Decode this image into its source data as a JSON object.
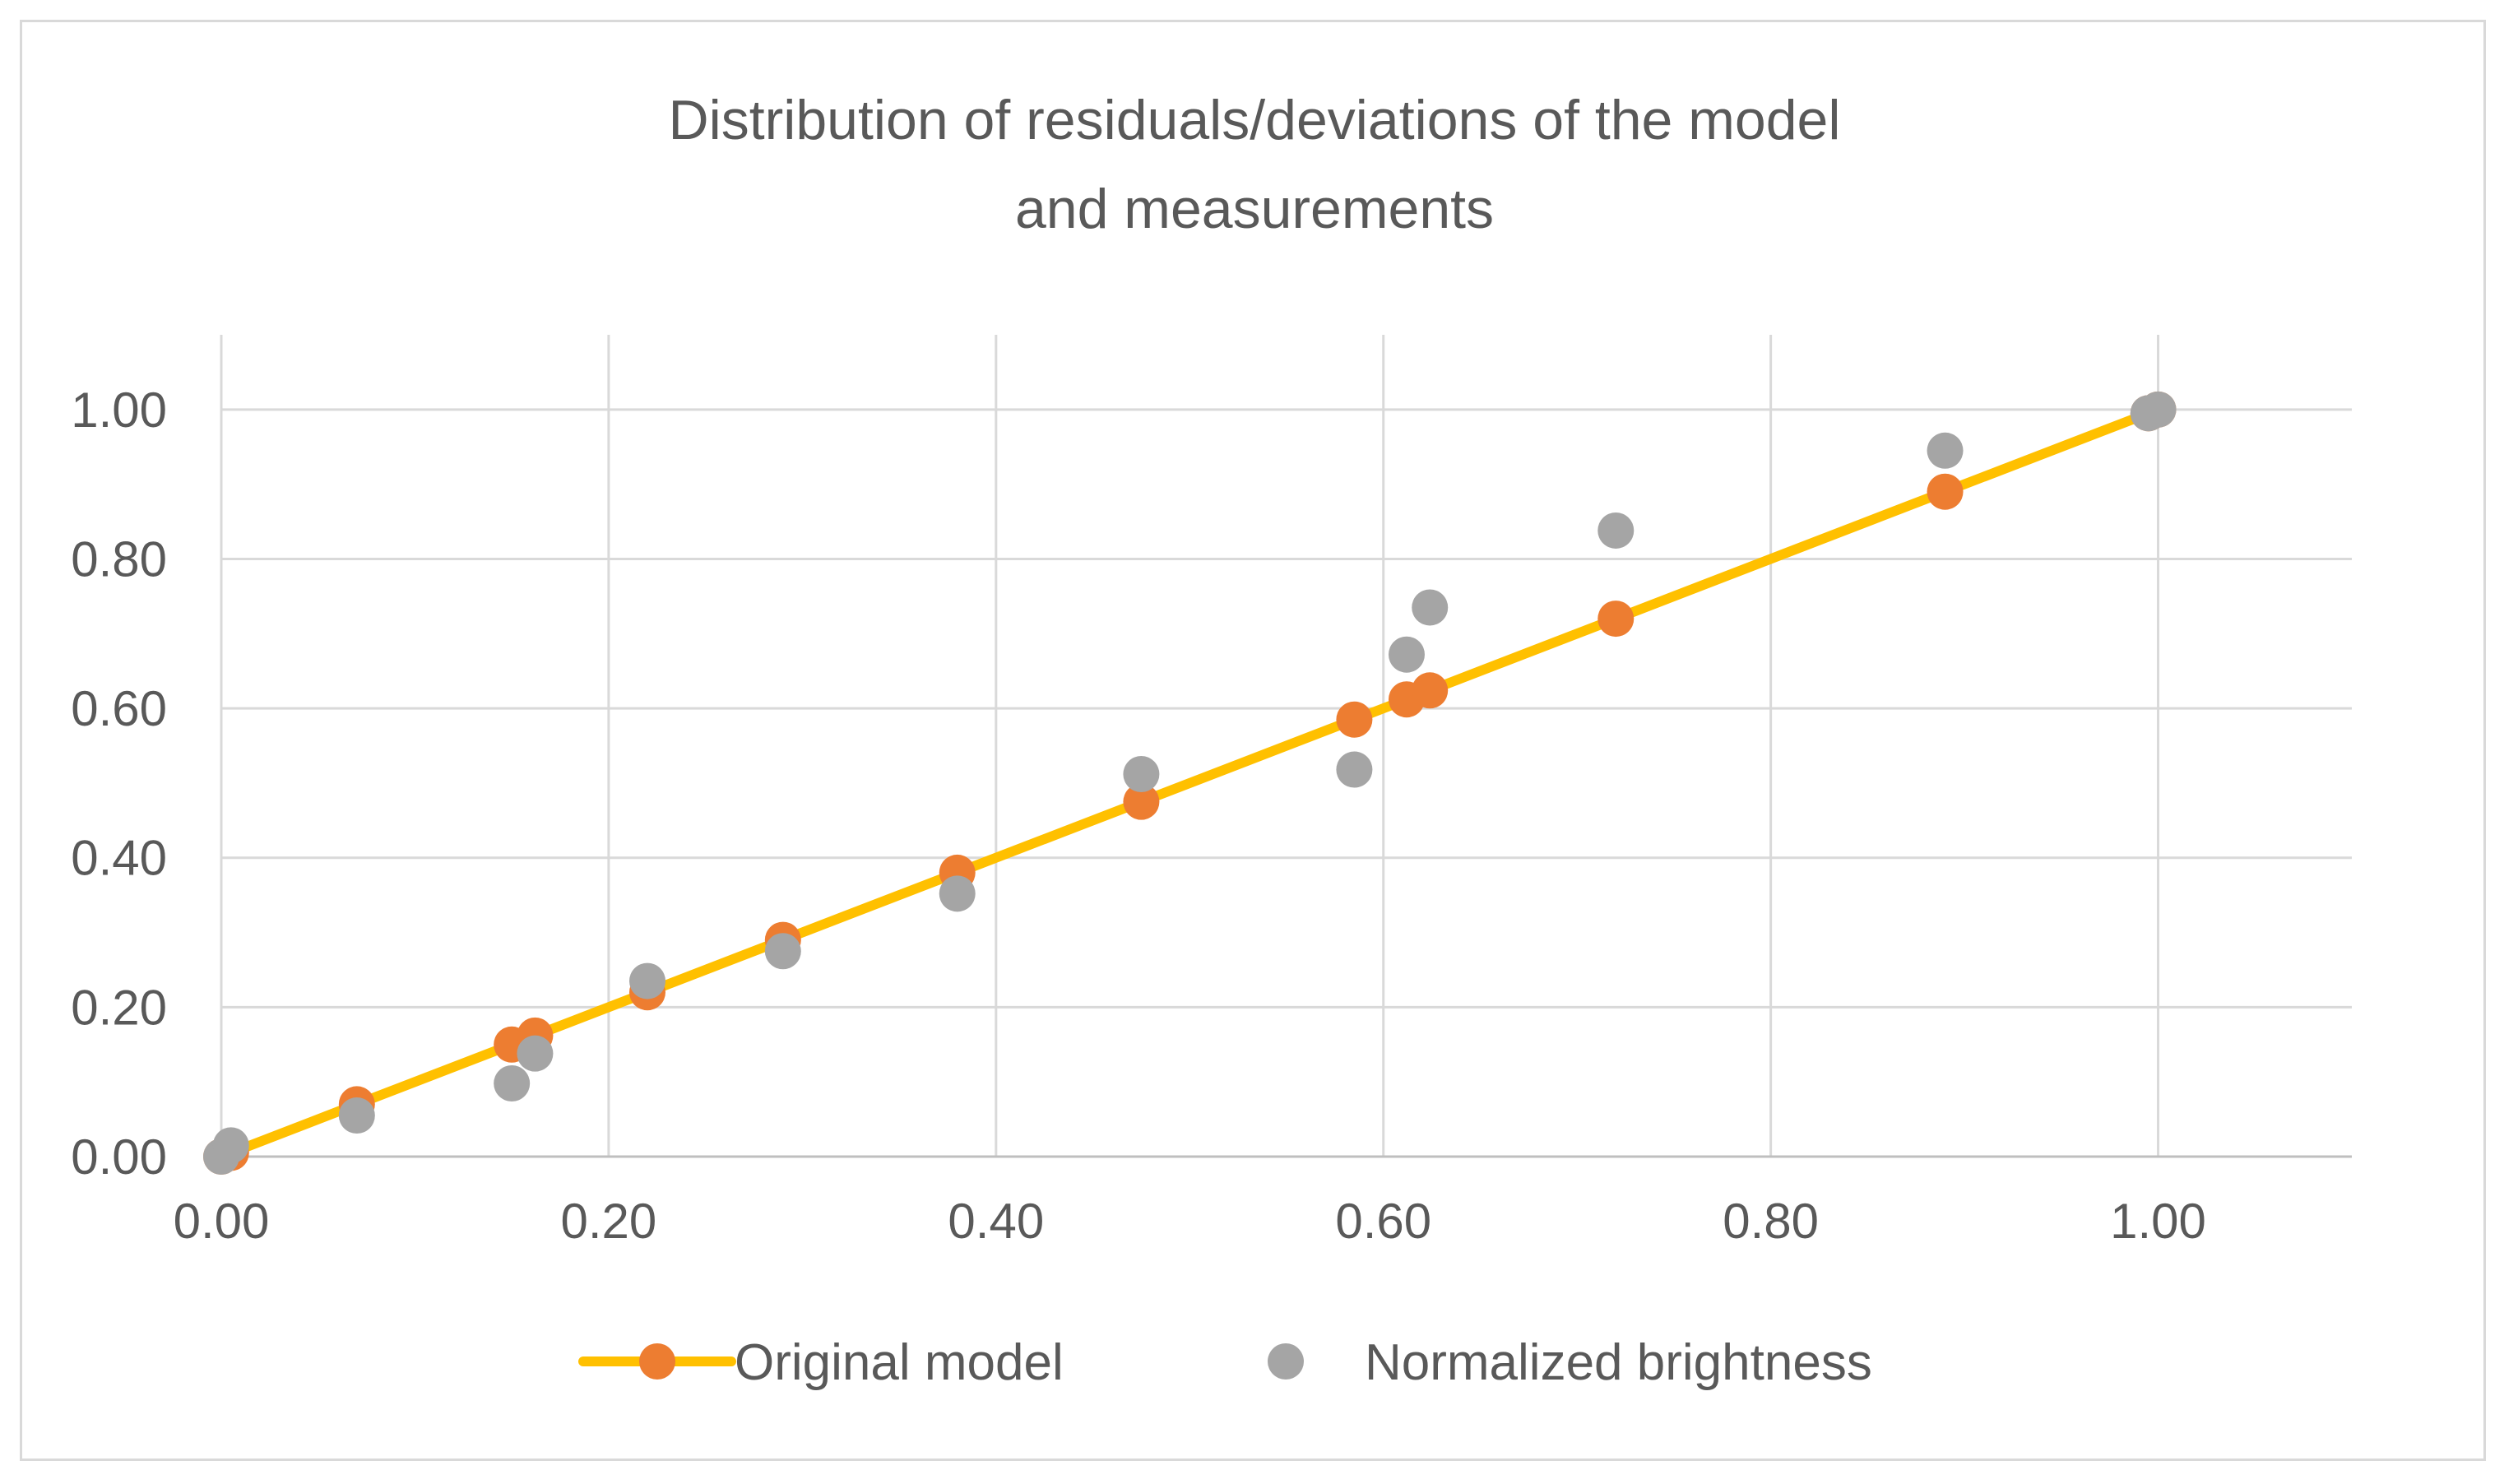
{
  "chart_data": {
    "type": "scatter",
    "title_lines": [
      "Distribution of residuals/deviations of the model",
      "and measurements"
    ],
    "xlabel": "",
    "ylabel": "",
    "xlim": [
      0,
      1.1
    ],
    "ylim": [
      0,
      1.1
    ],
    "grid": true,
    "x_ticks": [
      0.0,
      0.2,
      0.4,
      0.6,
      0.8,
      1.0
    ],
    "x_tick_labels": [
      "0.00",
      "0.20",
      "0.40",
      "0.60",
      "0.80",
      "1.00"
    ],
    "y_ticks": [
      0.0,
      0.2,
      0.4,
      0.6,
      0.8,
      1.0
    ],
    "y_tick_labels": [
      "0.00",
      "0.20",
      "0.40",
      "0.60",
      "0.80",
      "1.00"
    ],
    "legend_position": "bottom",
    "series": [
      {
        "name": "Original model",
        "kind": "line-with-markers",
        "line_color": "#FFC000",
        "marker_color": "#ED7D31",
        "points": [
          [
            0.0,
            0.0
          ],
          [
            0.005,
            0.005
          ],
          [
            0.07,
            0.07
          ],
          [
            0.15,
            0.15
          ],
          [
            0.162,
            0.162
          ],
          [
            0.22,
            0.22
          ],
          [
            0.29,
            0.29
          ],
          [
            0.38,
            0.38
          ],
          [
            0.475,
            0.475
          ],
          [
            0.585,
            0.585
          ],
          [
            0.612,
            0.612
          ],
          [
            0.624,
            0.624
          ],
          [
            0.72,
            0.72
          ],
          [
            0.89,
            0.89
          ],
          [
            0.995,
            0.995
          ],
          [
            1.0,
            1.0
          ]
        ]
      },
      {
        "name": "Normalized brightness",
        "kind": "markers",
        "marker_color": "#A5A5A5",
        "points": [
          [
            0.0,
            0.0
          ],
          [
            0.005,
            0.015
          ],
          [
            0.07,
            0.055
          ],
          [
            0.15,
            0.098
          ],
          [
            0.162,
            0.138
          ],
          [
            0.22,
            0.235
          ],
          [
            0.29,
            0.275
          ],
          [
            0.38,
            0.352
          ],
          [
            0.475,
            0.512
          ],
          [
            0.585,
            0.518
          ],
          [
            0.612,
            0.672
          ],
          [
            0.624,
            0.735
          ],
          [
            0.72,
            0.838
          ],
          [
            0.89,
            0.945
          ],
          [
            0.995,
            0.995
          ],
          [
            1.0,
            1.0
          ]
        ]
      }
    ]
  }
}
